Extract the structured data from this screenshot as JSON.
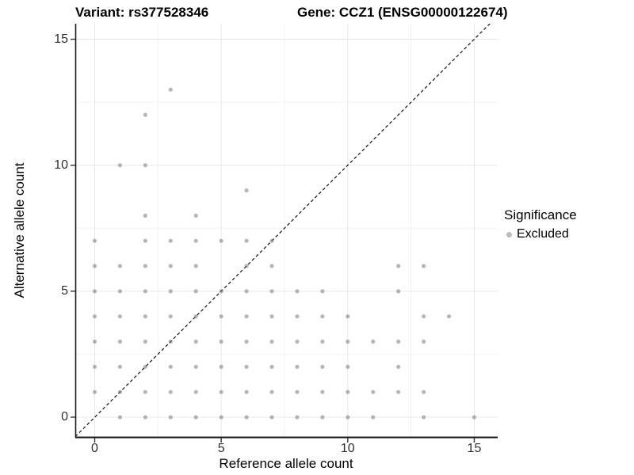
{
  "header": {
    "variant_title": "Variant: rs377528346",
    "gene_title": "Gene: CCZ1 (ENSG00000122674)"
  },
  "chart_data": {
    "type": "scatter",
    "xlabel": "Reference allele count",
    "ylabel": "Alternative allele count",
    "xlim": [
      -0.77,
      15.9
    ],
    "ylim": [
      -0.82,
      15.65
    ],
    "xticks": [
      0,
      5,
      10,
      15
    ],
    "yticks": [
      0,
      5,
      10,
      15
    ],
    "minor_xticks": [
      2.5,
      7.5,
      12.5
    ],
    "minor_yticks": [
      2.5,
      7.5,
      12.5
    ],
    "grid": true,
    "diagonal_line": {
      "style": "dashed",
      "equation": "y = x",
      "color": "#111111"
    },
    "legend": {
      "title": "Significance",
      "position": "right",
      "items": [
        {
          "label": "Excluded",
          "color": "#bdbdbd"
        }
      ]
    },
    "series": [
      {
        "name": "Excluded",
        "color": "#7a7a7a",
        "opacity": 0.55,
        "point_radius": 2.6,
        "points": [
          [
            1,
            0
          ],
          [
            2,
            0
          ],
          [
            3,
            0
          ],
          [
            4,
            0
          ],
          [
            5,
            0
          ],
          [
            6,
            0
          ],
          [
            7,
            0
          ],
          [
            8,
            0
          ],
          [
            9,
            0
          ],
          [
            10,
            0
          ],
          [
            11,
            0
          ],
          [
            13,
            0
          ],
          [
            15,
            0
          ],
          [
            0,
            1
          ],
          [
            1,
            1
          ],
          [
            2,
            1
          ],
          [
            3,
            1
          ],
          [
            4,
            1
          ],
          [
            5,
            1
          ],
          [
            6,
            1
          ],
          [
            7,
            1
          ],
          [
            8,
            1
          ],
          [
            9,
            1
          ],
          [
            10,
            1
          ],
          [
            11,
            1
          ],
          [
            12,
            1
          ],
          [
            13,
            1
          ],
          [
            0,
            2
          ],
          [
            1,
            2
          ],
          [
            2,
            2
          ],
          [
            3,
            2
          ],
          [
            4,
            2
          ],
          [
            5,
            2
          ],
          [
            6,
            2
          ],
          [
            7,
            2
          ],
          [
            8,
            2
          ],
          [
            9,
            2
          ],
          [
            10,
            2
          ],
          [
            12,
            2
          ],
          [
            0,
            3
          ],
          [
            1,
            3
          ],
          [
            2,
            3
          ],
          [
            3,
            3
          ],
          [
            4,
            3
          ],
          [
            5,
            3
          ],
          [
            6,
            3
          ],
          [
            7,
            3
          ],
          [
            8,
            3
          ],
          [
            9,
            3
          ],
          [
            10,
            3
          ],
          [
            11,
            3
          ],
          [
            12,
            3
          ],
          [
            13,
            3
          ],
          [
            0,
            4
          ],
          [
            1,
            4
          ],
          [
            2,
            4
          ],
          [
            3,
            4
          ],
          [
            4,
            4
          ],
          [
            5,
            4
          ],
          [
            6,
            4
          ],
          [
            7,
            4
          ],
          [
            8,
            4
          ],
          [
            9,
            4
          ],
          [
            10,
            4
          ],
          [
            13,
            4
          ],
          [
            14,
            4
          ],
          [
            0,
            5
          ],
          [
            1,
            5
          ],
          [
            2,
            5
          ],
          [
            3,
            5
          ],
          [
            4,
            5
          ],
          [
            5,
            5
          ],
          [
            6,
            5
          ],
          [
            7,
            5
          ],
          [
            8,
            5
          ],
          [
            9,
            5
          ],
          [
            12,
            5
          ],
          [
            0,
            6
          ],
          [
            1,
            6
          ],
          [
            2,
            6
          ],
          [
            3,
            6
          ],
          [
            4,
            6
          ],
          [
            6,
            6
          ],
          [
            7,
            6
          ],
          [
            12,
            6
          ],
          [
            13,
            6
          ],
          [
            0,
            7
          ],
          [
            2,
            7
          ],
          [
            3,
            7
          ],
          [
            4,
            7
          ],
          [
            5,
            7
          ],
          [
            6,
            7
          ],
          [
            7,
            7
          ],
          [
            2,
            8
          ],
          [
            4,
            8
          ],
          [
            6,
            9
          ],
          [
            1,
            10
          ],
          [
            2,
            10
          ],
          [
            2,
            12
          ],
          [
            3,
            13
          ]
        ]
      }
    ],
    "style": {
      "major_grid_color": "#e7e7e7",
      "minor_grid_color": "#f3f3f3",
      "axis_line_color": "#1a1a1a",
      "tick_color": "#333333"
    }
  }
}
